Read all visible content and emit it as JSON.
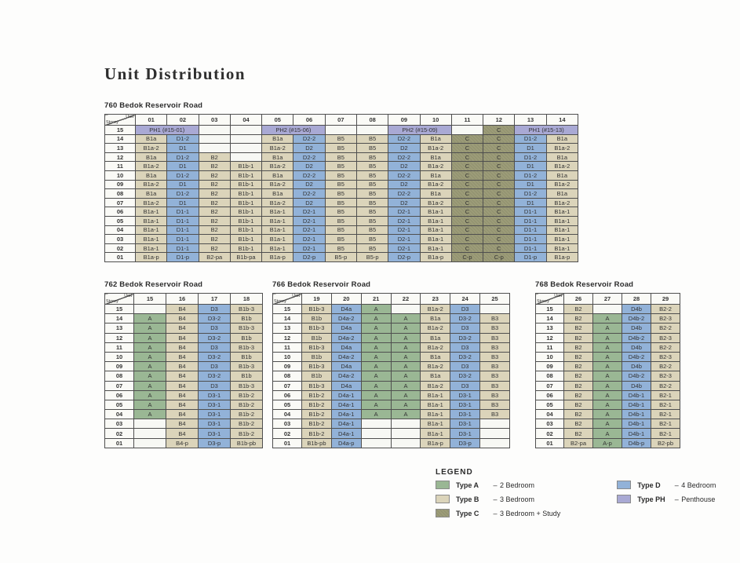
{
  "page": {
    "title": "Unit Distribution"
  },
  "corner": {
    "top": "Unit",
    "bottom": "Storey"
  },
  "type_colors": {
    "A": "#9ab794",
    "B": "#dbd4ba",
    "C": "#9c9c78",
    "D": "#92b2d8",
    "PH": "#a9a9d4",
    "empty": "#f7f8f4"
  },
  "tables": [
    {
      "label": "760 Bedok Reservoir Road",
      "columns": [
        "01",
        "02",
        "03",
        "04",
        "05",
        "06",
        "07",
        "08",
        "09",
        "10",
        "11",
        "12",
        "13",
        "14"
      ],
      "rows": [
        {
          "storey": "15",
          "cells": [
            {
              "t": "PH1 (#15-01)",
              "span": 2
            },
            "",
            "",
            {
              "t": "PH2 (#15-06)",
              "span": 2
            },
            "",
            "",
            {
              "t": "PH2 (#15-09)",
              "span": 2
            },
            "",
            "C",
            {
              "t": "PH1 (#15-13)",
              "span": 2
            }
          ]
        },
        {
          "storey": "14",
          "cells": [
            "B1a",
            "D1-2",
            "",
            "",
            "B1a",
            "D2-2",
            "B5",
            "B5",
            "D2-2",
            "B1a",
            "C",
            "C",
            "D1-2",
            "B1a"
          ]
        },
        {
          "storey": "13",
          "cells": [
            "B1a-2",
            "D1",
            "",
            "",
            "B1a-2",
            "D2",
            "B5",
            "B5",
            "D2",
            "B1a-2",
            "C",
            "C",
            "D1",
            "B1a-2"
          ]
        },
        {
          "storey": "12",
          "cells": [
            "B1a",
            "D1-2",
            "B2",
            "",
            "B1a",
            "D2-2",
            "B5",
            "B5",
            "D2-2",
            "B1a",
            "C",
            "C",
            "D1-2",
            "B1a"
          ]
        },
        {
          "storey": "11",
          "cells": [
            "B1a-2",
            "D1",
            "B2",
            "B1b-1",
            "B1a-2",
            "D2",
            "B5",
            "B5",
            "D2",
            "B1a-2",
            "C",
            "C",
            "D1",
            "B1a-2"
          ]
        },
        {
          "storey": "10",
          "cells": [
            "B1a",
            "D1-2",
            "B2",
            "B1b-1",
            "B1a",
            "D2-2",
            "B5",
            "B5",
            "D2-2",
            "B1a",
            "C",
            "C",
            "D1-2",
            "B1a"
          ]
        },
        {
          "storey": "09",
          "cells": [
            "B1a-2",
            "D1",
            "B2",
            "B1b-1",
            "B1a-2",
            "D2",
            "B5",
            "B5",
            "D2",
            "B1a-2",
            "C",
            "C",
            "D1",
            "B1a-2"
          ]
        },
        {
          "storey": "08",
          "cells": [
            "B1a",
            "D1-2",
            "B2",
            "B1b-1",
            "B1a",
            "D2-2",
            "B5",
            "B5",
            "D2-2",
            "B1a",
            "C",
            "C",
            "D1-2",
            "B1a"
          ]
        },
        {
          "storey": "07",
          "cells": [
            "B1a-2",
            "D1",
            "B2",
            "B1b-1",
            "B1a-2",
            "D2",
            "B5",
            "B5",
            "D2",
            "B1a-2",
            "C",
            "C",
            "D1",
            "B1a-2"
          ]
        },
        {
          "storey": "06",
          "cells": [
            "B1a-1",
            "D1-1",
            "B2",
            "B1b-1",
            "B1a-1",
            "D2-1",
            "B5",
            "B5",
            "D2-1",
            "B1a-1",
            "C",
            "C",
            "D1-1",
            "B1a-1"
          ]
        },
        {
          "storey": "05",
          "cells": [
            "B1a-1",
            "D1-1",
            "B2",
            "B1b-1",
            "B1a-1",
            "D2-1",
            "B5",
            "B5",
            "D2-1",
            "B1a-1",
            "C",
            "C",
            "D1-1",
            "B1a-1"
          ]
        },
        {
          "storey": "04",
          "cells": [
            "B1a-1",
            "D1-1",
            "B2",
            "B1b-1",
            "B1a-1",
            "D2-1",
            "B5",
            "B5",
            "D2-1",
            "B1a-1",
            "C",
            "C",
            "D1-1",
            "B1a-1"
          ]
        },
        {
          "storey": "03",
          "cells": [
            "B1a-1",
            "D1-1",
            "B2",
            "B1b-1",
            "B1a-1",
            "D2-1",
            "B5",
            "B5",
            "D2-1",
            "B1a-1",
            "C",
            "C",
            "D1-1",
            "B1a-1"
          ]
        },
        {
          "storey": "02",
          "cells": [
            "B1a-1",
            "D1-1",
            "B2",
            "B1b-1",
            "B1a-1",
            "D2-1",
            "B5",
            "B5",
            "D2-1",
            "B1a-1",
            "C",
            "C",
            "D1-1",
            "B1a-1"
          ]
        },
        {
          "storey": "01",
          "cells": [
            "B1a-p",
            "D1-p",
            "B2-pa",
            "B1b-pa",
            "B1a-p",
            "D2-p",
            "B5-p",
            "B5-p",
            "D2-p",
            "B1a-p",
            "C-p",
            "C-p",
            "D1-p",
            "B1a-p"
          ]
        }
      ]
    },
    {
      "label": "762 Bedok Reservoir Road",
      "columns": [
        "15",
        "16",
        "17",
        "18"
      ],
      "rows": [
        {
          "storey": "15",
          "cells": [
            "",
            "B4",
            "D3",
            "B1b-3"
          ]
        },
        {
          "storey": "14",
          "cells": [
            "A",
            "B4",
            "D3-2",
            "B1b"
          ]
        },
        {
          "storey": "13",
          "cells": [
            "A",
            "B4",
            "D3",
            "B1b-3"
          ]
        },
        {
          "storey": "12",
          "cells": [
            "A",
            "B4",
            "D3-2",
            "B1b"
          ]
        },
        {
          "storey": "11",
          "cells": [
            "A",
            "B4",
            "D3",
            "B1b-3"
          ]
        },
        {
          "storey": "10",
          "cells": [
            "A",
            "B4",
            "D3-2",
            "B1b"
          ]
        },
        {
          "storey": "09",
          "cells": [
            "A",
            "B4",
            "D3",
            "B1b-3"
          ]
        },
        {
          "storey": "08",
          "cells": [
            "A",
            "B4",
            "D3-2",
            "B1b"
          ]
        },
        {
          "storey": "07",
          "cells": [
            "A",
            "B4",
            "D3",
            "B1b-3"
          ]
        },
        {
          "storey": "06",
          "cells": [
            "A",
            "B4",
            "D3-1",
            "B1b-2"
          ]
        },
        {
          "storey": "05",
          "cells": [
            "A",
            "B4",
            "D3-1",
            "B1b-2"
          ]
        },
        {
          "storey": "04",
          "cells": [
            "A",
            "B4",
            "D3-1",
            "B1b-2"
          ]
        },
        {
          "storey": "03",
          "cells": [
            "",
            "B4",
            "D3-1",
            "B1b-2"
          ]
        },
        {
          "storey": "02",
          "cells": [
            "",
            "B4",
            "D3-1",
            "B1b-2"
          ]
        },
        {
          "storey": "01",
          "cells": [
            "",
            "B4-p",
            "D3-p",
            "B1b-pb"
          ]
        }
      ]
    },
    {
      "label": "766 Bedok Reservoir Road",
      "columns": [
        "19",
        "20",
        "21",
        "22",
        "23",
        "24",
        "25"
      ],
      "rows": [
        {
          "storey": "15",
          "cells": [
            "B1b-3",
            "D4a",
            "A",
            "",
            "B1a-2",
            "D3",
            ""
          ]
        },
        {
          "storey": "14",
          "cells": [
            "B1b",
            "D4a-2",
            "A",
            "A",
            "B1a",
            "D3-2",
            "B3"
          ]
        },
        {
          "storey": "13",
          "cells": [
            "B1b-3",
            "D4a",
            "A",
            "A",
            "B1a-2",
            "D3",
            "B3"
          ]
        },
        {
          "storey": "12",
          "cells": [
            "B1b",
            "D4a-2",
            "A",
            "A",
            "B1a",
            "D3-2",
            "B3"
          ]
        },
        {
          "storey": "11",
          "cells": [
            "B1b-3",
            "D4a",
            "A",
            "A",
            "B1a-2",
            "D3",
            "B3"
          ]
        },
        {
          "storey": "10",
          "cells": [
            "B1b",
            "D4a-2",
            "A",
            "A",
            "B1a",
            "D3-2",
            "B3"
          ]
        },
        {
          "storey": "09",
          "cells": [
            "B1b-3",
            "D4a",
            "A",
            "A",
            "B1a-2",
            "D3",
            "B3"
          ]
        },
        {
          "storey": "08",
          "cells": [
            "B1b",
            "D4a-2",
            "A",
            "A",
            "B1a",
            "D3-2",
            "B3"
          ]
        },
        {
          "storey": "07",
          "cells": [
            "B1b-3",
            "D4a",
            "A",
            "A",
            "B1a-2",
            "D3",
            "B3"
          ]
        },
        {
          "storey": "06",
          "cells": [
            "B1b-2",
            "D4a-1",
            "A",
            "A",
            "B1a-1",
            "D3-1",
            "B3"
          ]
        },
        {
          "storey": "05",
          "cells": [
            "B1b-2",
            "D4a-1",
            "A",
            "A",
            "B1a-1",
            "D3-1",
            "B3"
          ]
        },
        {
          "storey": "04",
          "cells": [
            "B1b-2",
            "D4a-1",
            "A",
            "A",
            "B1a-1",
            "D3-1",
            "B3"
          ]
        },
        {
          "storey": "03",
          "cells": [
            "B1b-2",
            "D4a-1",
            "",
            "",
            "B1a-1",
            "D3-1",
            ""
          ]
        },
        {
          "storey": "02",
          "cells": [
            "B1b-2",
            "D4a-1",
            "",
            "",
            "B1a-1",
            "D3-1",
            ""
          ]
        },
        {
          "storey": "01",
          "cells": [
            "B1b-pb",
            "D4a-p",
            "",
            "",
            "B1a-p",
            "D3-p",
            ""
          ]
        }
      ]
    },
    {
      "label": "768 Bedok Reservoir Road",
      "columns": [
        "26",
        "27",
        "28",
        "29"
      ],
      "rows": [
        {
          "storey": "15",
          "cells": [
            "B2",
            "",
            "D4b",
            "B2-2"
          ]
        },
        {
          "storey": "14",
          "cells": [
            "B2",
            "A",
            "D4b-2",
            "B2-3"
          ]
        },
        {
          "storey": "13",
          "cells": [
            "B2",
            "A",
            "D4b",
            "B2-2"
          ]
        },
        {
          "storey": "12",
          "cells": [
            "B2",
            "A",
            "D4b-2",
            "B2-3"
          ]
        },
        {
          "storey": "11",
          "cells": [
            "B2",
            "A",
            "D4b",
            "B2-2"
          ]
        },
        {
          "storey": "10",
          "cells": [
            "B2",
            "A",
            "D4b-2",
            "B2-3"
          ]
        },
        {
          "storey": "09",
          "cells": [
            "B2",
            "A",
            "D4b",
            "B2-2"
          ]
        },
        {
          "storey": "08",
          "cells": [
            "B2",
            "A",
            "D4b-2",
            "B2-3"
          ]
        },
        {
          "storey": "07",
          "cells": [
            "B2",
            "A",
            "D4b",
            "B2-2"
          ]
        },
        {
          "storey": "06",
          "cells": [
            "B2",
            "A",
            "D4b-1",
            "B2-1"
          ]
        },
        {
          "storey": "05",
          "cells": [
            "B2",
            "A",
            "D4b-1",
            "B2-1"
          ]
        },
        {
          "storey": "04",
          "cells": [
            "B2",
            "A",
            "D4b-1",
            "B2-1"
          ]
        },
        {
          "storey": "03",
          "cells": [
            "B2",
            "A",
            "D4b-1",
            "B2-1"
          ]
        },
        {
          "storey": "02",
          "cells": [
            "B2",
            "A",
            "D4b-1",
            "B2-1"
          ]
        },
        {
          "storey": "01",
          "cells": [
            "B2-pa",
            "A-p",
            "D4b-p",
            "B2-pb"
          ]
        }
      ]
    }
  ],
  "legend": {
    "heading": "LEGEND",
    "separator": "–",
    "columns": [
      [
        {
          "type": "A",
          "label": "Type A",
          "desc": "2 Bedroom"
        },
        {
          "type": "B",
          "label": "Type B",
          "desc": "3 Bedroom"
        },
        {
          "type": "C",
          "label": "Type C",
          "desc": "3 Bedroom + Study"
        }
      ],
      [
        {
          "type": "D",
          "label": "Type D",
          "desc": "4 Bedroom"
        },
        {
          "type": "PH",
          "label": "Type PH",
          "desc": "Penthouse"
        }
      ]
    ]
  }
}
